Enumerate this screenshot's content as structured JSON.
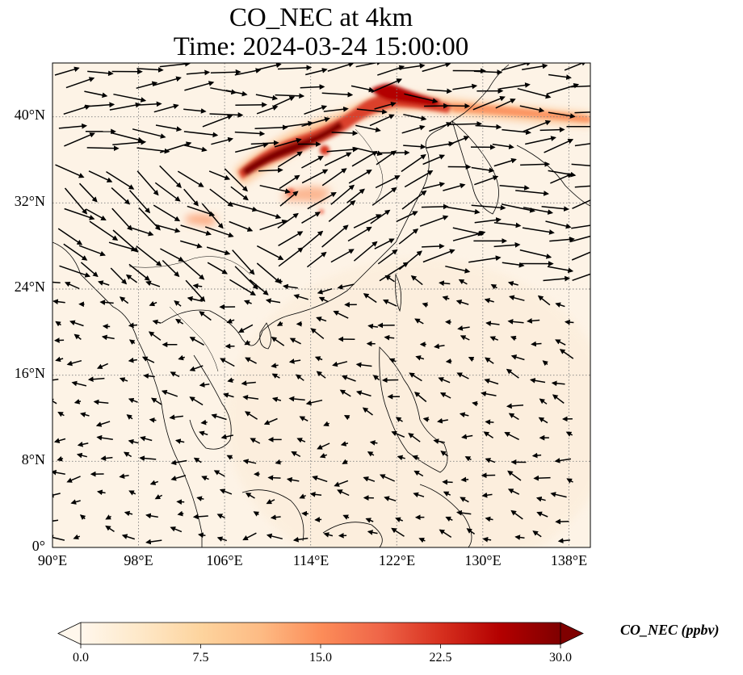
{
  "title": {
    "line1": "CO_NEC at 4km",
    "line2": "Time: 2024-03-24 15:00:00"
  },
  "map": {
    "lon_range": [
      90,
      140
    ],
    "lat_range": [
      0,
      45
    ],
    "lon_ticks": [
      "90°E",
      "98°E",
      "106°E",
      "114°E",
      "122°E",
      "130°E",
      "138°E"
    ],
    "lat_ticks": [
      "0°",
      "8°N",
      "16°N",
      "24°N",
      "32°N",
      "40°N"
    ],
    "gridlines": true,
    "field_name": "CO_NEC",
    "vector_color": "#000000",
    "coastline_color": "#000000"
  },
  "colorbar": {
    "label": "CO_NEC (ppbv)",
    "ticks": [
      "0.0",
      "7.5",
      "15.0",
      "22.5",
      "30.0"
    ],
    "range": [
      0,
      30
    ],
    "extend": "both",
    "colormap": "OrRd",
    "colors": [
      "#fff7ec",
      "#fee8c8",
      "#fdd49e",
      "#fdbb84",
      "#fc8d59",
      "#ef6548",
      "#d7301f",
      "#b30000",
      "#7f0000"
    ]
  }
}
